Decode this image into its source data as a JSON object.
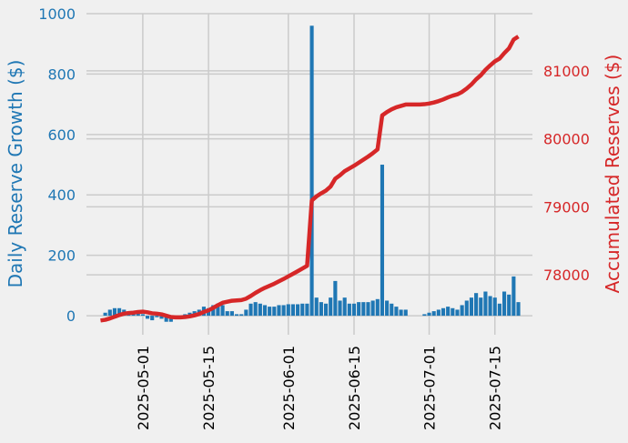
{
  "chart_data": {
    "type": "bar-line",
    "x": [
      "2025-04-22",
      "2025-04-23",
      "2025-04-24",
      "2025-04-25",
      "2025-04-26",
      "2025-04-27",
      "2025-04-28",
      "2025-04-29",
      "2025-04-30",
      "2025-05-01",
      "2025-05-02",
      "2025-05-03",
      "2025-05-04",
      "2025-05-05",
      "2025-05-06",
      "2025-05-07",
      "2025-05-08",
      "2025-05-09",
      "2025-05-10",
      "2025-05-11",
      "2025-05-12",
      "2025-05-13",
      "2025-05-14",
      "2025-05-15",
      "2025-05-16",
      "2025-05-17",
      "2025-05-18",
      "2025-05-19",
      "2025-05-20",
      "2025-05-21",
      "2025-05-22",
      "2025-05-23",
      "2025-05-24",
      "2025-05-25",
      "2025-05-26",
      "2025-05-27",
      "2025-05-28",
      "2025-05-29",
      "2025-05-30",
      "2025-05-31",
      "2025-06-01",
      "2025-06-02",
      "2025-06-03",
      "2025-06-04",
      "2025-06-05",
      "2025-06-06",
      "2025-06-07",
      "2025-06-08",
      "2025-06-09",
      "2025-06-10",
      "2025-06-11",
      "2025-06-12",
      "2025-06-13",
      "2025-06-14",
      "2025-06-15",
      "2025-06-16",
      "2025-06-17",
      "2025-06-18",
      "2025-06-19",
      "2025-06-20",
      "2025-06-21",
      "2025-06-22",
      "2025-06-23",
      "2025-06-24",
      "2025-06-25",
      "2025-06-26",
      "2025-06-27",
      "2025-06-28",
      "2025-06-29",
      "2025-06-30",
      "2025-07-01",
      "2025-07-02",
      "2025-07-03",
      "2025-07-04",
      "2025-07-05",
      "2025-07-06",
      "2025-07-07",
      "2025-07-08",
      "2025-07-09",
      "2025-07-10",
      "2025-07-11",
      "2025-07-12",
      "2025-07-13",
      "2025-07-14",
      "2025-07-15",
      "2025-07-16",
      "2025-07-17",
      "2025-07-18",
      "2025-07-19",
      "2025-07-20"
    ],
    "series": [
      {
        "name": "Daily Reserve Growth",
        "color": "#1f77b4",
        "values": [
          null,
          10,
          20,
          25,
          25,
          20,
          10,
          5,
          10,
          5,
          -10,
          -15,
          -5,
          -10,
          -20,
          -20,
          -5,
          0,
          5,
          10,
          15,
          20,
          30,
          25,
          35,
          40,
          35,
          15,
          15,
          5,
          5,
          20,
          40,
          45,
          40,
          35,
          30,
          30,
          35,
          35,
          38,
          38,
          38,
          40,
          40,
          960,
          60,
          45,
          40,
          60,
          115,
          50,
          60,
          40,
          40,
          45,
          45,
          45,
          50,
          55,
          500,
          50,
          40,
          30,
          20,
          20,
          0,
          0,
          0,
          5,
          10,
          15,
          20,
          25,
          30,
          25,
          20,
          35,
          50,
          60,
          75,
          60,
          80,
          65,
          60,
          40,
          80,
          70,
          130,
          45
        ]
      },
      {
        "name": "Accumulated Reserves",
        "color": "#d62728",
        "axis": "y2",
        "values": [
          77330,
          77340,
          77360,
          77385,
          77410,
          77430,
          77440,
          77445,
          77455,
          77460,
          77450,
          77435,
          77430,
          77420,
          77400,
          77380,
          77375,
          77375,
          77380,
          77390,
          77405,
          77425,
          77455,
          77480,
          77515,
          77555,
          77590,
          77605,
          77620,
          77625,
          77630,
          77650,
          77690,
          77735,
          77775,
          77810,
          77840,
          77870,
          77905,
          77940,
          77978,
          78016,
          78054,
          78094,
          78134,
          79094,
          79154,
          79199,
          79239,
          79299,
          79414,
          79464,
          79524,
          79564,
          79604,
          79649,
          79694,
          79739,
          79789,
          79844,
          80344,
          80394,
          80434,
          80464,
          80484,
          80504,
          80504,
          80504,
          80504,
          80509,
          80519,
          80534,
          80554,
          80579,
          80609,
          80634,
          80654,
          80689,
          80739,
          80799,
          80874,
          80934,
          81014,
          81079,
          81139,
          81179,
          81259,
          81329,
          81459,
          81504
        ]
      }
    ],
    "y_label": "Daily Reserve Growth ($)",
    "y2_label": "Accumulated Reserves ($)",
    "xlim": [
      "2025-04-19",
      "2025-07-23"
    ],
    "xticks": [
      "2025-05-01",
      "2025-05-15",
      "2025-06-01",
      "2025-06-15",
      "2025-07-01",
      "2025-07-15"
    ],
    "ylim": [
      -63,
      1000
    ],
    "yticks": [
      0,
      200,
      400,
      600,
      800,
      1000
    ],
    "y2lim": [
      77120,
      81840
    ],
    "y2ticks": [
      78000,
      79000,
      80000,
      81000
    ],
    "grid": true
  }
}
